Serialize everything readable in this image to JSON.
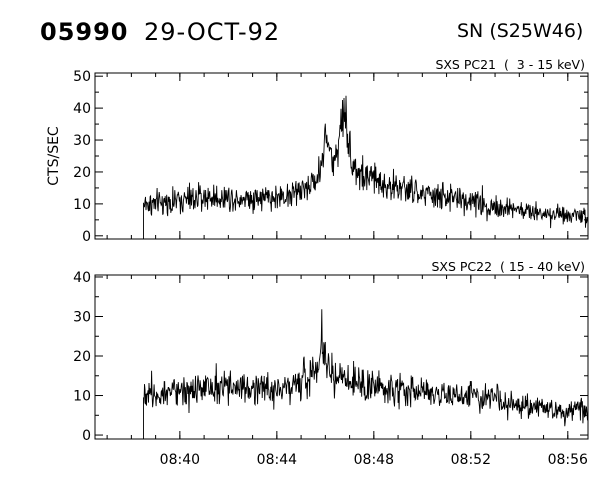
{
  "header": {
    "event_id": "05990",
    "date": "29-OCT-92",
    "location": "SN (S25W46)"
  },
  "chart_data": [
    {
      "type": "line",
      "title": "SXS PC21  (  3 - 15 keV)",
      "ylabel": "CTS/SEC",
      "xlabel": "",
      "xlim": [
        "08:36:30",
        "08:56:50"
      ],
      "ylim": [
        -1,
        51
      ],
      "yticks": [
        0,
        10,
        20,
        30,
        40,
        50
      ],
      "xticks": [
        "08:40",
        "08:44",
        "08:48",
        "08:52",
        "08:56"
      ],
      "data_start": "08:38:30",
      "grid": false,
      "series": [
        {
          "x": [
            "08:38:30",
            "08:39:00",
            "08:40:00",
            "08:41:00",
            "08:42:00",
            "08:43:00",
            "08:44:00",
            "08:45:00",
            "08:45:40",
            "08:45:50",
            "08:46:00",
            "08:46:20",
            "08:46:40",
            "08:46:50",
            "08:47:00",
            "08:47:20",
            "08:47:40",
            "08:48:00",
            "08:48:30",
            "08:49:00",
            "08:50:00",
            "08:51:00",
            "08:52:00",
            "08:53:00",
            "08:54:00",
            "08:55:00",
            "08:56:00",
            "08:56:50"
          ],
          "values": [
            10,
            10,
            11,
            12,
            12,
            12,
            12,
            14,
            18,
            22,
            32,
            22,
            35,
            40,
            26,
            20,
            18,
            18,
            16,
            15,
            13,
            12,
            11,
            9,
            8,
            7,
            7,
            6
          ]
        }
      ]
    },
    {
      "type": "line",
      "title": "SXS PC22  ( 15 - 40 keV)",
      "ylabel": "",
      "xlabel": "",
      "xlim": [
        "08:36:30",
        "08:56:50"
      ],
      "ylim": [
        -1,
        40.5
      ],
      "yticks": [
        0,
        10,
        20,
        30,
        40
      ],
      "xticks": [
        "08:40",
        "08:44",
        "08:48",
        "08:52",
        "08:56"
      ],
      "data_start": "08:38:30",
      "grid": false,
      "series": [
        {
          "x": [
            "08:38:30",
            "08:39:00",
            "08:40:00",
            "08:41:00",
            "08:42:00",
            "08:43:00",
            "08:44:00",
            "08:45:00",
            "08:45:40",
            "08:45:50",
            "08:46:00",
            "08:46:20",
            "08:47:00",
            "08:48:00",
            "08:49:00",
            "08:50:00",
            "08:51:00",
            "08:52:00",
            "08:53:00",
            "08:54:00",
            "08:55:00",
            "08:56:00",
            "08:56:50"
          ],
          "values": [
            11,
            11,
            12,
            11,
            12,
            12,
            12,
            13,
            17,
            26,
            19,
            15,
            13,
            12,
            12,
            11,
            10,
            10,
            9,
            7,
            7,
            6,
            6
          ]
        }
      ]
    }
  ]
}
